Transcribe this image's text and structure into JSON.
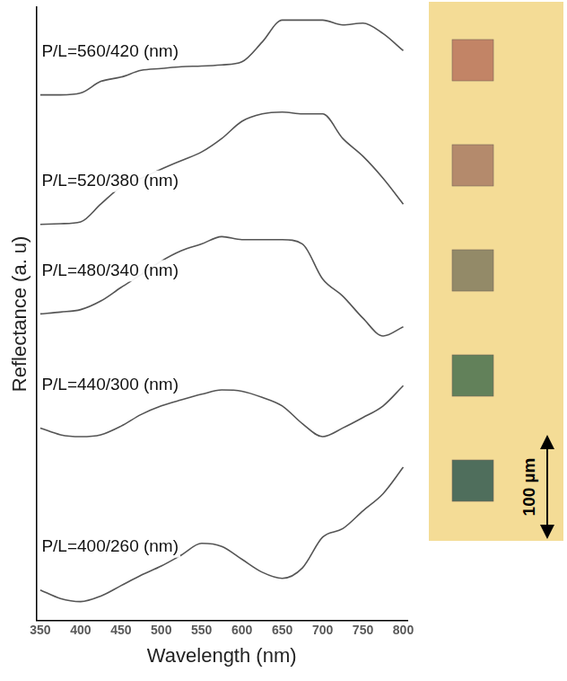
{
  "chart_data": {
    "type": "line",
    "x_label": "Wavelength (nm)",
    "y_label": "Reflectance (a. u)",
    "x": [
      350,
      375,
      400,
      425,
      450,
      475,
      500,
      525,
      550,
      575,
      600,
      625,
      650,
      675,
      700,
      725,
      750,
      775,
      800
    ],
    "series": [
      {
        "name": "P/L=560/420 (nm)",
        "color": "#555555",
        "values": [
          85.7,
          85.7,
          86.0,
          87.9,
          88.6,
          89.7,
          90.0,
          90.3,
          90.4,
          90.6,
          91.1,
          94.3,
          97.9,
          97.9,
          97.9,
          97.1,
          97.4,
          95.7,
          92.9
        ]
      },
      {
        "name": "P/L=520/380 (nm)",
        "color": "#555555",
        "values": [
          64.6,
          64.7,
          65.0,
          67.9,
          70.7,
          72.1,
          73.6,
          75.0,
          76.4,
          78.6,
          81.4,
          82.6,
          82.9,
          82.6,
          82.6,
          78.6,
          75.7,
          72.1,
          67.9
        ]
      },
      {
        "name": "P/L=480/340 (nm)",
        "color": "#555555",
        "values": [
          50.0,
          50.3,
          50.7,
          52.1,
          54.3,
          56.4,
          58.6,
          60.3,
          61.4,
          62.6,
          62.1,
          62.1,
          62.1,
          61.4,
          55.7,
          52.9,
          49.3,
          46.4,
          47.9
        ]
      },
      {
        "name": "P/L=440/300 (nm)",
        "color": "#555555",
        "values": [
          31.4,
          30.3,
          30.0,
          30.3,
          31.7,
          33.6,
          35.0,
          36.0,
          36.9,
          37.6,
          37.4,
          36.4,
          35.0,
          32.1,
          30.0,
          31.4,
          33.1,
          35.0,
          38.3
        ]
      },
      {
        "name": "P/L=400/260 (nm)",
        "color": "#555555",
        "values": [
          5.0,
          3.6,
          3.1,
          4.0,
          5.7,
          7.4,
          8.9,
          10.7,
          12.6,
          12.1,
          10.0,
          7.9,
          6.9,
          8.6,
          13.6,
          15.0,
          17.9,
          20.7,
          25.0
        ]
      }
    ],
    "xlim": [
      345,
      805
    ],
    "xticks": [
      350,
      400,
      450,
      500,
      550,
      600,
      650,
      700,
      750,
      800
    ],
    "ylim": [
      0,
      100
    ],
    "grid": false,
    "tick_labels": "x"
  },
  "micrograph": {
    "background": "#f4dc96",
    "square_colors": [
      "#c28466",
      "#b48a6c",
      "#938a68",
      "#62815a",
      "#4f6e5c"
    ],
    "scale_bar": "100 µm"
  }
}
